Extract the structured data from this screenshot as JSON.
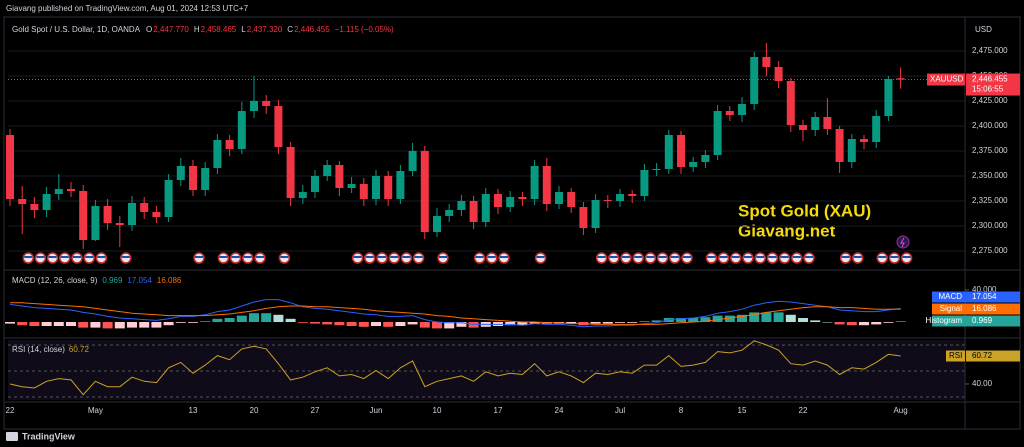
{
  "header": {
    "publisher": "Giavang published on TradingView.com, Aug 01, 2024 12:53 UTC+7"
  },
  "footer": "TradingView",
  "chart_data": [
    {
      "type": "candlestick",
      "title": "Gold Spot / U.S. Dollar, 1D, OANDA",
      "ohlc_legend": [
        {
          "key": "O",
          "label": "2,447.770"
        },
        {
          "key": "H",
          "label": "2,458.465"
        },
        {
          "key": "L",
          "label": "2,437.320"
        },
        {
          "key": "C",
          "label": "2,446.455"
        }
      ],
      "change_label": "−1.115 (−0.05%)",
      "currency": "USD",
      "symbol": "XAUUSD",
      "last_price_label": "2,446.455",
      "countdown": "15:06:55",
      "annotations": [
        "Spot Gold (XAU)",
        "Giavang.net"
      ],
      "up_color": "#089981",
      "down_color": "#f23645",
      "categories": [
        "22",
        null,
        null,
        null,
        null,
        null,
        null,
        "May",
        null,
        null,
        null,
        null,
        null,
        null,
        null,
        "13",
        null,
        null,
        null,
        null,
        "20",
        null,
        null,
        null,
        null,
        "27",
        null,
        null,
        null,
        null,
        "Jun",
        null,
        null,
        null,
        null,
        "10",
        null,
        null,
        null,
        null,
        "17",
        null,
        null,
        null,
        null,
        "24",
        null,
        null,
        null,
        null,
        "Jul",
        null,
        null,
        null,
        null,
        "8",
        null,
        null,
        null,
        null,
        "15",
        null,
        null,
        null,
        null,
        "22",
        null,
        null,
        null,
        null,
        null,
        null,
        null,
        "Aug"
      ],
      "open": [
        2391,
        2327,
        2322,
        2316,
        2332,
        2337,
        2335,
        2286,
        2320,
        2303,
        2301,
        2323,
        2314,
        2309,
        2346,
        2360,
        2336,
        2358,
        2386,
        2377,
        2415,
        2425,
        2420,
        2379,
        2328,
        2334,
        2350,
        2361,
        2338,
        2342,
        2327,
        2350,
        2327,
        2355,
        2375,
        2294,
        2310,
        2316,
        2325,
        2304,
        2332,
        2319,
        2329,
        2327,
        2360,
        2322,
        2334,
        2319,
        2298,
        2326,
        2325,
        2332,
        2330,
        2356,
        2357,
        2391,
        2359,
        2364,
        2371,
        2415,
        2411,
        2422,
        2469,
        2459,
        2445,
        2401,
        2396,
        2409,
        2397,
        2364,
        2387,
        2384,
        2410,
        2447.77
      ],
      "high": [
        2397,
        2340,
        2329,
        2339,
        2352,
        2344,
        2341,
        2326,
        2327,
        2310,
        2330,
        2329,
        2320,
        2352,
        2368,
        2366,
        2364,
        2392,
        2391,
        2424,
        2450,
        2431,
        2426,
        2384,
        2341,
        2356,
        2366,
        2365,
        2349,
        2348,
        2356,
        2355,
        2361,
        2383,
        2380,
        2318,
        2322,
        2331,
        2330,
        2338,
        2337,
        2335,
        2334,
        2366,
        2368,
        2340,
        2338,
        2324,
        2332,
        2331,
        2337,
        2336,
        2362,
        2363,
        2396,
        2395,
        2369,
        2376,
        2421,
        2420,
        2429,
        2474,
        2483,
        2465,
        2448,
        2406,
        2414,
        2428,
        2400,
        2392,
        2391,
        2416,
        2450,
        2458.465
      ],
      "low": [
        2320,
        2292,
        2308,
        2309,
        2326,
        2329,
        2277,
        2285,
        2296,
        2279,
        2295,
        2307,
        2303,
        2304,
        2340,
        2330,
        2330,
        2352,
        2370,
        2372,
        2408,
        2412,
        2372,
        2320,
        2322,
        2328,
        2345,
        2330,
        2333,
        2320,
        2321,
        2320,
        2322,
        2350,
        2287,
        2289,
        2304,
        2310,
        2297,
        2299,
        2312,
        2314,
        2320,
        2321,
        2315,
        2317,
        2313,
        2291,
        2293,
        2318,
        2319,
        2323,
        2325,
        2350,
        2352,
        2352,
        2354,
        2358,
        2366,
        2405,
        2404,
        2416,
        2450,
        2438,
        2394,
        2385,
        2390,
        2391,
        2353,
        2358,
        2377,
        2378,
        2405,
        2437.32
      ],
      "close": [
        2327,
        2322,
        2316,
        2332,
        2337,
        2335,
        2286,
        2320,
        2303,
        2301,
        2323,
        2314,
        2309,
        2346,
        2360,
        2336,
        2358,
        2386,
        2377,
        2415,
        2425,
        2420,
        2379,
        2328,
        2334,
        2350,
        2361,
        2338,
        2342,
        2327,
        2350,
        2327,
        2355,
        2375,
        2294,
        2310,
        2316,
        2325,
        2304,
        2332,
        2319,
        2329,
        2327,
        2360,
        2322,
        2334,
        2319,
        2298,
        2326,
        2325,
        2332,
        2330,
        2356,
        2357,
        2391,
        2359,
        2364,
        2371,
        2415,
        2411,
        2422,
        2469,
        2459,
        2445,
        2401,
        2396,
        2409,
        2397,
        2364,
        2387,
        2384,
        2410,
        2447,
        2446.455
      ],
      "ylim": [
        2258,
        2506
      ],
      "yticks": [
        {
          "value": 2275,
          "label": "2,275.000"
        },
        {
          "value": 2300,
          "label": "2,300.000"
        },
        {
          "value": 2325,
          "label": "2,325.000"
        },
        {
          "value": 2350,
          "label": "2,350.000"
        },
        {
          "value": 2375,
          "label": "2,375.000"
        },
        {
          "value": 2400,
          "label": "2,400.000"
        },
        {
          "value": 2425,
          "label": "2,425.000"
        },
        {
          "value": 2450,
          "label": "2,450.000"
        },
        {
          "value": 2475,
          "label": "2,475.000"
        }
      ],
      "grid": true
    },
    {
      "type": "macd",
      "title": "MACD (12, 26, close, 9)",
      "histogram_colors": [
        "#26a69a",
        "#b2dfdb",
        "#ffcdd2",
        "#ff5252"
      ],
      "series": [
        {
          "name": "MACD",
          "color": "#2962ff",
          "values": [
            22,
            20,
            18,
            17,
            16,
            15,
            12,
            10,
            7,
            5,
            4,
            3,
            2,
            4,
            7,
            7,
            9,
            13,
            15,
            20,
            25,
            28,
            28,
            24,
            19,
            17,
            16,
            14,
            12,
            10,
            9,
            7,
            7,
            8,
            3,
            0,
            -1,
            -1,
            -3,
            -3,
            -3,
            -3,
            -4,
            -2,
            -3,
            -3,
            -4,
            -6,
            -5,
            -5,
            -4,
            -4,
            -2,
            -1,
            3,
            4,
            5,
            7,
            11,
            13,
            16,
            21,
            24,
            26,
            25,
            23,
            21,
            19,
            15,
            14,
            13,
            13,
            15,
            17.054
          ]
        },
        {
          "name": "Signal",
          "color": "#ff6d00",
          "values": [
            24,
            24,
            23,
            22,
            21,
            20,
            19,
            17,
            15,
            13,
            11,
            10,
            9,
            8,
            8,
            8,
            8,
            9,
            10,
            12,
            14,
            17,
            19,
            20,
            20,
            19,
            19,
            18,
            17,
            16,
            14,
            13,
            12,
            11,
            10,
            8,
            7,
            5,
            4,
            3,
            2,
            1,
            0,
            0,
            -1,
            -1,
            -2,
            -2,
            -3,
            -3,
            -3,
            -3,
            -3,
            -3,
            -2,
            -1,
            0,
            1,
            3,
            5,
            7,
            9,
            12,
            14,
            16,
            18,
            19,
            19,
            18,
            18,
            17,
            16,
            16,
            16.086
          ]
        },
        {
          "name": "Histogram",
          "color": "#26a69a",
          "values": [
            -2,
            -4,
            -5,
            -5,
            -5,
            -5,
            -7,
            -7,
            -8,
            -8,
            -7,
            -7,
            -7,
            -4,
            -1,
            -1,
            1,
            4,
            5,
            8,
            11,
            11,
            9,
            4,
            -1,
            -2,
            -3,
            -4,
            -5,
            -6,
            -5,
            -6,
            -5,
            -3,
            -7,
            -8,
            -8,
            -6,
            -7,
            -6,
            -5,
            -4,
            -4,
            -2,
            -2,
            -2,
            -2,
            -4,
            -2,
            -2,
            -1,
            -1,
            1,
            2,
            5,
            5,
            5,
            6,
            8,
            8,
            9,
            12,
            12,
            12,
            9,
            5,
            2,
            0,
            -3,
            -4,
            -4,
            -3,
            -1,
            0.969
          ]
        }
      ],
      "ylim": [
        -17.5,
        61.25
      ],
      "yticks": [
        {
          "value": 40,
          "label": "40.000"
        }
      ]
    },
    {
      "type": "rsi",
      "title": "RSI (14, close)",
      "series": [
        {
          "name": "RSI",
          "color": "#c9a227",
          "values": [
            40,
            38,
            37,
            42,
            44,
            43,
            32,
            42,
            38,
            38,
            45,
            42,
            41,
            52,
            56,
            48,
            54,
            61,
            58,
            66,
            68,
            66,
            55,
            43,
            45,
            49,
            52,
            46,
            47,
            44,
            50,
            44,
            52,
            57,
            38,
            42,
            44,
            46,
            42,
            49,
            46,
            48,
            47,
            55,
            46,
            49,
            46,
            41,
            48,
            47,
            49,
            48,
            54,
            54,
            61,
            53,
            54,
            56,
            64,
            63,
            65,
            72,
            69,
            65,
            55,
            54,
            57,
            54,
            47,
            52,
            51,
            56,
            62,
            60.72
          ]
        }
      ],
      "ylim": [
        28.1,
        72.6
      ],
      "yticks": [
        {
          "value": 40,
          "label": "40.00"
        }
      ]
    }
  ]
}
